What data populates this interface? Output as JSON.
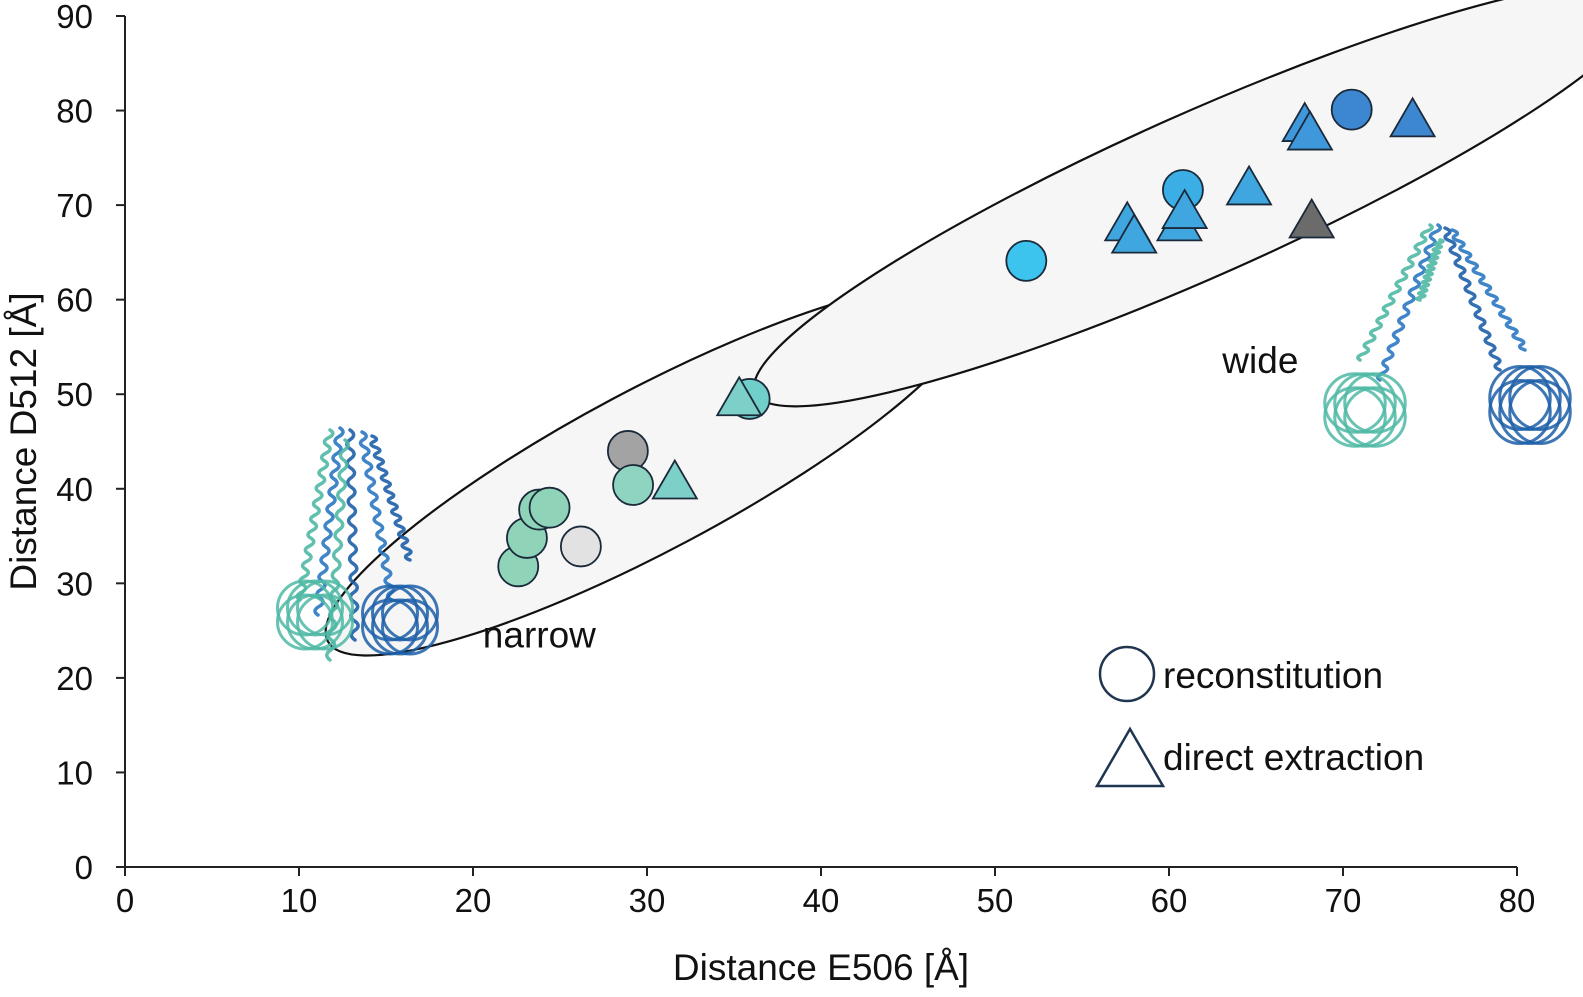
{
  "chart_data": {
    "type": "scatter",
    "xlabel": "Distance E506 [Å]",
    "ylabel": "Distance D512 [Å]",
    "xlim": [
      0,
      80
    ],
    "ylim": [
      0,
      90
    ],
    "xticks": [
      0,
      10,
      20,
      30,
      40,
      50,
      60,
      70,
      80
    ],
    "yticks": [
      0,
      10,
      20,
      30,
      40,
      50,
      60,
      70,
      80,
      90
    ],
    "grid": false,
    "legend_position": "bottom-right",
    "legend": [
      {
        "label": "reconstitution",
        "marker": "circle"
      },
      {
        "label": "direct extraction",
        "marker": "triangle"
      }
    ],
    "annotations": [
      {
        "text": "narrow",
        "x": 22,
        "y": 24.5
      },
      {
        "text": "wide",
        "x": 64.5,
        "y": 53.5
      }
    ],
    "clusters": [
      {
        "name": "narrow",
        "cx": 30.2,
        "cy": 42.0,
        "rx": 21.0,
        "ry": 8.5,
        "angle_deg": -28
      },
      {
        "name": "wide",
        "cx": 61.8,
        "cy": 71.1,
        "rx": 28.0,
        "ry": 8.6,
        "angle_deg": -24
      }
    ],
    "series": [
      {
        "name": "reconstitution",
        "marker": "circle",
        "points": [
          {
            "x": 22.6,
            "y": 31.8,
            "color": "#8fd4b8"
          },
          {
            "x": 23.1,
            "y": 34.8,
            "color": "#8fd4b8"
          },
          {
            "x": 23.8,
            "y": 37.8,
            "color": "#8fd4b8"
          },
          {
            "x": 24.4,
            "y": 38.0,
            "color": "#8fd4b8"
          },
          {
            "x": 26.2,
            "y": 33.9,
            "color": "#e2e2e2"
          },
          {
            "x": 28.9,
            "y": 44.0,
            "color": "#a3a3a3"
          },
          {
            "x": 29.2,
            "y": 40.4,
            "color": "#8fd4c0"
          },
          {
            "x": 35.9,
            "y": 49.5,
            "color": "#70cfc8"
          },
          {
            "x": 51.8,
            "y": 64.1,
            "color": "#3cc4ef"
          },
          {
            "x": 60.8,
            "y": 71.6,
            "color": "#3aaee5"
          },
          {
            "x": 70.5,
            "y": 80.1,
            "color": "#3d87d0"
          }
        ]
      },
      {
        "name": "direct extraction",
        "marker": "triangle",
        "points": [
          {
            "x": 31.6,
            "y": 40.5,
            "color": "#7dd0c8"
          },
          {
            "x": 35.3,
            "y": 49.3,
            "color": "#7dd0c8"
          },
          {
            "x": 57.6,
            "y": 67.8,
            "color": "#3fa6e0"
          },
          {
            "x": 58.0,
            "y": 66.5,
            "color": "#3fa6e0"
          },
          {
            "x": 60.6,
            "y": 67.8,
            "color": "#3fa6e0"
          },
          {
            "x": 60.9,
            "y": 69.1,
            "color": "#3fa6e0"
          },
          {
            "x": 64.6,
            "y": 71.6,
            "color": "#3fa6e0"
          },
          {
            "x": 67.8,
            "y": 78.3,
            "color": "#3f97dc"
          },
          {
            "x": 68.1,
            "y": 77.4,
            "color": "#3f97dc"
          },
          {
            "x": 68.2,
            "y": 68.1,
            "color": "#6b6b6b"
          },
          {
            "x": 74.0,
            "y": 78.8,
            "color": "#3d87d0"
          }
        ]
      }
    ]
  }
}
